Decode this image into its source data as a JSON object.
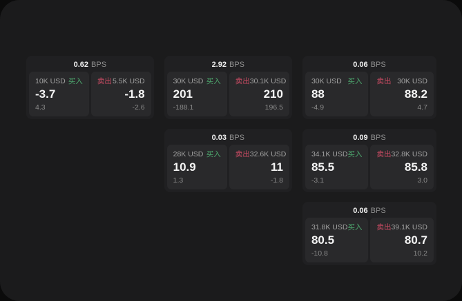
{
  "colors": {
    "outer_background": "#0b0b0b",
    "panel_background": "#1b1b1c",
    "card_background": "#202022",
    "tile_background": "#29292b",
    "buy_green": "#4da56d",
    "sell_red": "#c64a62",
    "primary_text": "#f5f5f5",
    "muted_text": "#8f8f8f"
  },
  "cards": [
    {
      "bps_value": "0.62",
      "bps_unit": "BPS",
      "buy": {
        "amount": "10K USD",
        "side": "买入",
        "price": "-3.7",
        "delta": "4.3"
      },
      "sell": {
        "side": "卖出",
        "amount": "5.5K USD",
        "price": "-1.8",
        "delta": "-2.6"
      }
    },
    {
      "bps_value": "2.92",
      "bps_unit": "BPS",
      "buy": {
        "amount": "30K USD",
        "side": "买入",
        "price": "201",
        "delta": "-188.1"
      },
      "sell": {
        "side": "卖出",
        "amount": "30.1K USD",
        "price": "210",
        "delta": "196.5"
      }
    },
    {
      "bps_value": "0.06",
      "bps_unit": "BPS",
      "buy": {
        "amount": "30K USD",
        "side": "买入",
        "price": "88",
        "delta": "-4.9"
      },
      "sell": {
        "side": "卖出",
        "amount": "30K USD",
        "price": "88.2",
        "delta": "4.7"
      }
    },
    {
      "bps_value": "0.03",
      "bps_unit": "BPS",
      "buy": {
        "amount": "28K USD",
        "side": "买入",
        "price": "10.9",
        "delta": "1.3"
      },
      "sell": {
        "side": "卖出",
        "amount": "32.6K USD",
        "price": "11",
        "delta": "-1.8"
      }
    },
    {
      "bps_value": "0.09",
      "bps_unit": "BPS",
      "buy": {
        "amount": "34.1K USD",
        "side": "买入",
        "price": "85.5",
        "delta": "-3.1"
      },
      "sell": {
        "side": "卖出",
        "amount": "32.8K USD",
        "price": "85.8",
        "delta": "3.0"
      }
    },
    {
      "bps_value": "0.06",
      "bps_unit": "BPS",
      "buy": {
        "amount": "31.8K USD",
        "side": "买入",
        "price": "80.5",
        "delta": "-10.8"
      },
      "sell": {
        "side": "卖出",
        "amount": "39.1K USD",
        "price": "80.7",
        "delta": "10.2"
      }
    }
  ]
}
